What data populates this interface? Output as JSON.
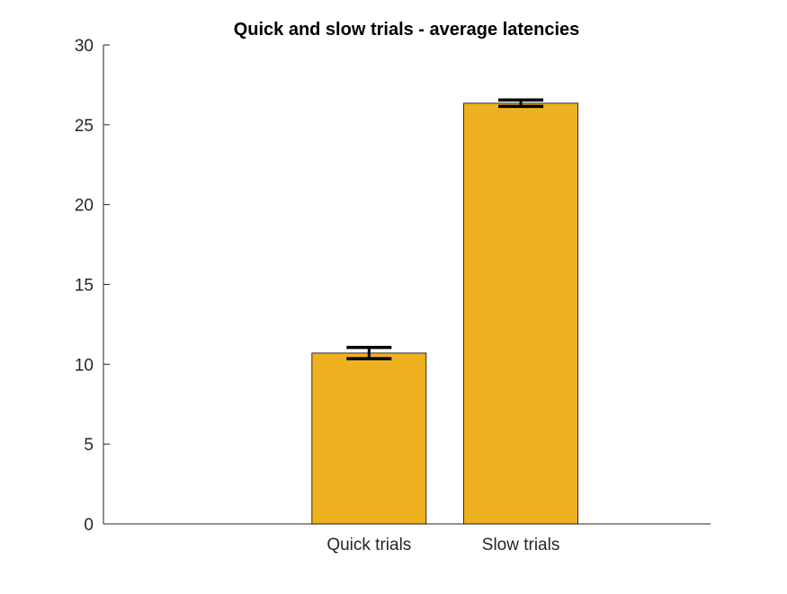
{
  "chart_data": {
    "type": "bar",
    "title": "Quick and slow trials - average latencies",
    "xlabel": "",
    "ylabel": "",
    "categories": [
      "Quick trials",
      "Slow trials"
    ],
    "values": [
      10.7,
      26.35
    ],
    "error": [
      0.35,
      0.2
    ],
    "ylim": [
      0,
      30
    ],
    "xlim": [
      0,
      4
    ],
    "x_positions": [
      1.75,
      2.75
    ],
    "y_ticks": [
      0,
      5,
      10,
      15,
      20,
      25,
      30
    ],
    "grid": false,
    "colors": {
      "bar_fill": "#EDB120",
      "bar_edge": "#000000",
      "error_bar": "#000000",
      "axis": "#262626"
    }
  }
}
